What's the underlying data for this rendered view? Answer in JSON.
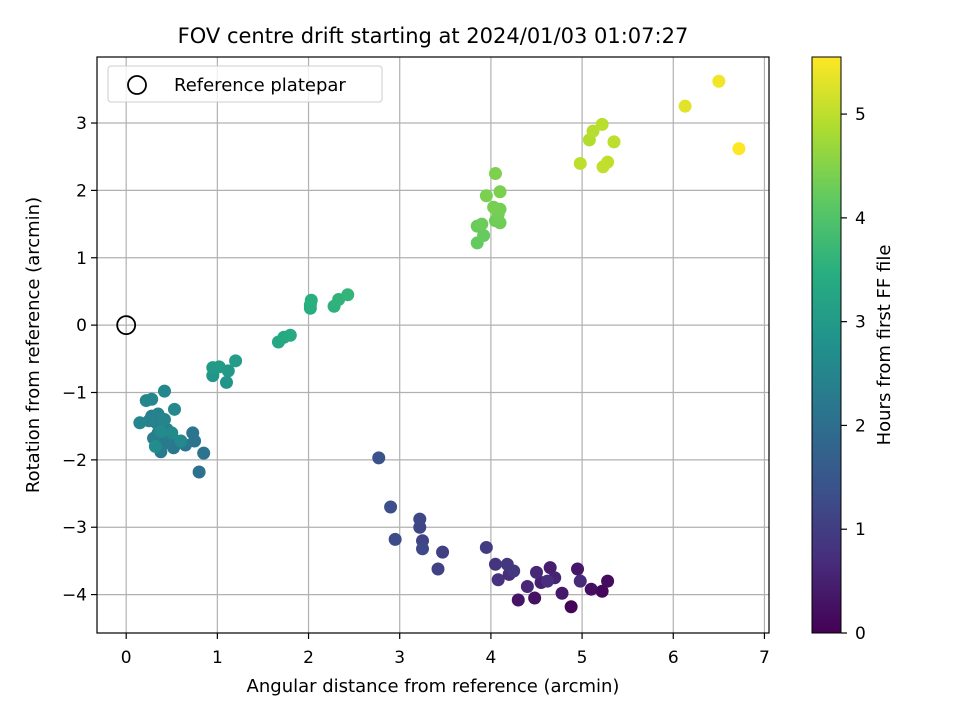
{
  "chart_data": {
    "type": "scatter",
    "title": "FOV centre drift starting at 2024/01/03 01:07:27",
    "xlabel": "Angular distance from reference (arcmin)",
    "ylabel": "Rotation from reference (arcmin)",
    "xlim": [
      -0.32,
      7.05
    ],
    "ylim": [
      -4.57,
      3.98
    ],
    "xticks": [
      0,
      1,
      2,
      3,
      4,
      5,
      6,
      7
    ],
    "yticks": [
      -4,
      -3,
      -2,
      -1,
      0,
      1,
      2,
      3
    ],
    "xtick_labels": [
      "0",
      "1",
      "2",
      "3",
      "4",
      "5",
      "6",
      "7"
    ],
    "ytick_labels": [
      "−4",
      "−3",
      "−2",
      "−1",
      "0",
      "1",
      "2",
      "3"
    ],
    "grid": true,
    "legend": {
      "placement": "top-left",
      "entries": [
        "Reference platepar"
      ]
    },
    "reference_point": {
      "x": 0,
      "y": 0
    },
    "colorbar": {
      "label": "Hours from first FF file",
      "min": 0,
      "max": 5.55,
      "ticks": [
        0,
        1,
        2,
        3,
        4,
        5
      ],
      "tick_labels": [
        "0",
        "1",
        "2",
        "3",
        "4",
        "5"
      ],
      "colormap": "viridis"
    },
    "series": [
      {
        "points": [
          [
            4.88,
            -4.18,
            0.05
          ],
          [
            5.22,
            -3.95,
            0.1
          ],
          [
            5.28,
            -3.8,
            0.15
          ],
          [
            5.1,
            -3.92,
            0.2
          ],
          [
            4.48,
            -4.05,
            0.25
          ],
          [
            4.3,
            -4.08,
            0.3
          ],
          [
            4.95,
            -3.62,
            0.35
          ],
          [
            4.78,
            -3.98,
            0.4
          ],
          [
            4.65,
            -3.6,
            0.45
          ],
          [
            4.55,
            -3.82,
            0.5
          ],
          [
            4.7,
            -3.75,
            0.55
          ],
          [
            4.4,
            -3.88,
            0.6
          ],
          [
            4.5,
            -3.67,
            0.62
          ],
          [
            4.98,
            -3.8,
            0.66
          ],
          [
            4.2,
            -3.7,
            0.7
          ],
          [
            4.62,
            -3.8,
            0.74
          ],
          [
            4.08,
            -3.78,
            0.78
          ],
          [
            4.05,
            -3.55,
            0.82
          ],
          [
            4.25,
            -3.65,
            0.86
          ],
          [
            4.18,
            -3.55,
            0.9
          ],
          [
            3.95,
            -3.3,
            0.95
          ],
          [
            3.47,
            -3.37,
            1.05
          ],
          [
            3.42,
            -3.62,
            1.08
          ],
          [
            3.25,
            -3.2,
            1.12
          ],
          [
            3.22,
            -3.0,
            1.16
          ],
          [
            3.22,
            -2.88,
            1.2
          ],
          [
            3.25,
            -3.32,
            1.24
          ],
          [
            2.95,
            -3.18,
            1.28
          ],
          [
            2.9,
            -2.7,
            1.33
          ],
          [
            2.77,
            -1.97,
            1.4
          ],
          [
            0.8,
            -2.18,
            2.05
          ],
          [
            0.85,
            -1.9,
            2.1
          ],
          [
            0.75,
            -1.72,
            2.12
          ],
          [
            0.73,
            -1.6,
            2.15
          ],
          [
            0.65,
            -1.78,
            2.18
          ],
          [
            0.55,
            -1.72,
            2.2
          ],
          [
            0.52,
            -1.82,
            2.22
          ],
          [
            0.47,
            -1.65,
            2.25
          ],
          [
            0.42,
            -1.75,
            2.27
          ],
          [
            0.38,
            -1.88,
            2.3
          ],
          [
            0.35,
            -1.6,
            2.32
          ],
          [
            0.3,
            -1.68,
            2.34
          ],
          [
            0.4,
            -1.5,
            2.36
          ],
          [
            0.45,
            -1.55,
            2.38
          ],
          [
            0.33,
            -1.45,
            2.4
          ],
          [
            0.28,
            -1.35,
            2.42
          ],
          [
            0.35,
            -1.32,
            2.44
          ],
          [
            0.25,
            -1.42,
            2.46
          ],
          [
            0.42,
            -1.4,
            2.48
          ],
          [
            0.15,
            -1.45,
            2.5
          ],
          [
            0.22,
            -1.12,
            2.52
          ],
          [
            0.28,
            -1.1,
            2.54
          ],
          [
            0.42,
            -0.98,
            2.56
          ],
          [
            0.53,
            -1.25,
            2.58
          ],
          [
            0.6,
            -1.72,
            2.6
          ],
          [
            0.5,
            -1.6,
            2.62
          ],
          [
            0.38,
            -1.58,
            2.64
          ],
          [
            0.32,
            -1.8,
            2.66
          ],
          [
            1.1,
            -0.85,
            2.88
          ],
          [
            0.95,
            -0.75,
            2.92
          ],
          [
            1.12,
            -0.68,
            2.95
          ],
          [
            0.95,
            -0.63,
            2.98
          ],
          [
            1.02,
            -0.62,
            3.0
          ],
          [
            1.2,
            -0.53,
            3.05
          ],
          [
            1.67,
            -0.25,
            3.28
          ],
          [
            1.73,
            -0.18,
            3.32
          ],
          [
            1.8,
            -0.15,
            3.35
          ],
          [
            2.02,
            0.25,
            3.45
          ],
          [
            2.02,
            0.3,
            3.48
          ],
          [
            2.03,
            0.37,
            3.5
          ],
          [
            2.28,
            0.28,
            3.55
          ],
          [
            2.33,
            0.38,
            3.58
          ],
          [
            2.43,
            0.45,
            3.62
          ],
          [
            3.85,
            1.22,
            4.2
          ],
          [
            3.92,
            1.33,
            4.22
          ],
          [
            3.85,
            1.47,
            4.25
          ],
          [
            3.9,
            1.5,
            4.28
          ],
          [
            4.05,
            1.55,
            4.3
          ],
          [
            4.1,
            1.52,
            4.32
          ],
          [
            4.08,
            1.65,
            4.34
          ],
          [
            4.1,
            1.72,
            4.36
          ],
          [
            4.03,
            1.75,
            4.38
          ],
          [
            3.95,
            1.92,
            4.4
          ],
          [
            4.1,
            1.98,
            4.42
          ],
          [
            4.05,
            2.25,
            4.44
          ],
          [
            5.08,
            2.75,
            4.9
          ],
          [
            5.12,
            2.88,
            4.93
          ],
          [
            5.22,
            2.98,
            4.96
          ],
          [
            5.35,
            2.72,
            4.99
          ],
          [
            4.98,
            2.4,
            5.0
          ],
          [
            5.28,
            2.42,
            5.02
          ],
          [
            5.23,
            2.35,
            5.04
          ],
          [
            6.13,
            3.25,
            5.3
          ],
          [
            6.5,
            3.62,
            5.45
          ],
          [
            6.72,
            2.62,
            5.55
          ]
        ]
      }
    ]
  }
}
